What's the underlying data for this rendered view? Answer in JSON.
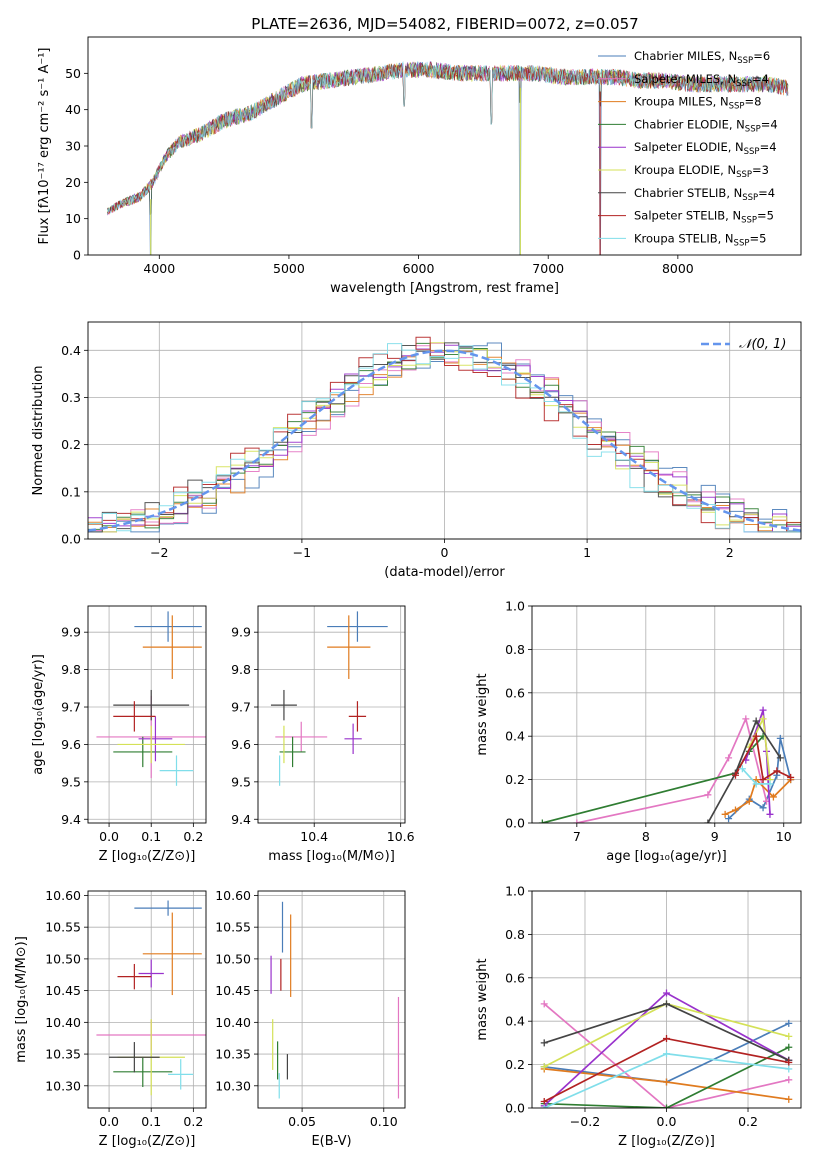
{
  "figure": {
    "title": "PLATE=2636, MJD=54082, FIBERID=0072, z=0.057"
  },
  "series_styles": [
    {
      "name": "Chabrier MILES",
      "nssp": "6",
      "color": "#4a7db8"
    },
    {
      "name": "Salpeter MILES",
      "nssp": "4",
      "color": "#e377c2"
    },
    {
      "name": "Kroupa MILES",
      "nssp": "8",
      "color": "#e07b1f"
    },
    {
      "name": "Chabrier ELODIE",
      "nssp": "4",
      "color": "#2f7d32"
    },
    {
      "name": "Salpeter ELODIE",
      "nssp": "4",
      "color": "#9932cc"
    },
    {
      "name": "Kroupa ELODIE",
      "nssp": "3",
      "color": "#d4e157"
    },
    {
      "name": "Chabrier STELIB",
      "nssp": "4",
      "color": "#444444"
    },
    {
      "name": "Salpeter STELIB",
      "nssp": "5",
      "color": "#b22222"
    },
    {
      "name": "Kroupa STELIB",
      "nssp": "5",
      "color": "#80deea"
    }
  ],
  "chart_data": [
    {
      "id": "spectrum",
      "type": "line",
      "xlabel": "wavelength [Angstrom, rest frame]",
      "ylabel": "Flux [fλ10⁻¹⁷ erg cm⁻² s⁻¹ A⁻¹]",
      "xlim": [
        3450,
        8950
      ],
      "ylim": [
        0,
        60
      ],
      "xticks": [
        4000,
        5000,
        6000,
        7000,
        8000
      ],
      "yticks": [
        0,
        10,
        20,
        30,
        40,
        50
      ],
      "grid": false,
      "legend": "top-right",
      "continuum": {
        "x": [
          3600,
          3700,
          3850,
          3950,
          4050,
          4150,
          4300,
          4500,
          4700,
          4900,
          5100,
          5300,
          5500,
          5700,
          5900,
          6100,
          6300,
          6500,
          6700,
          6900,
          7100,
          7300,
          7500,
          7700,
          7900,
          8100,
          8300,
          8500,
          8700,
          8850
        ],
        "y": [
          12,
          14,
          16,
          20,
          27,
          31,
          33,
          37,
          39,
          43,
          47,
          48,
          49,
          50,
          51,
          51,
          50,
          50,
          50,
          50,
          49,
          49,
          49,
          48,
          48,
          47,
          47,
          47,
          47,
          46
        ]
      },
      "absorption_lines": [
        {
          "x": 3934,
          "y": 0
        },
        {
          "x": 5175,
          "y": 35
        },
        {
          "x": 5890,
          "y": 41
        },
        {
          "x": 6563,
          "y": 36
        },
        {
          "x": 6785,
          "y": 0
        },
        {
          "x": 7400,
          "y": 0
        }
      ]
    },
    {
      "id": "residuals",
      "type": "histogram",
      "xlabel": "(data-model)/error",
      "ylabel": "Normed distribution",
      "xlim": [
        -2.5,
        2.5
      ],
      "ylim": [
        0,
        0.46
      ],
      "xticks": [
        -2,
        -1,
        0,
        1,
        2
      ],
      "yticks": [
        0.0,
        0.1,
        0.2,
        0.3,
        0.4
      ],
      "grid": true,
      "legend": "top-right",
      "reference_curve": {
        "label": "𝒩(0, 1)",
        "mean": 0,
        "sigma": 1,
        "color": "#6495ed"
      },
      "bins": {
        "start": -2.5,
        "width": 0.1,
        "count": 50
      }
    },
    {
      "id": "age_vs_Z",
      "type": "errorbar",
      "xlabel": "Z [log₁₀(Z/Z⊙)]",
      "ylabel": "age  [log₁₀(age/yr)]",
      "xlim": [
        -0.05,
        0.23
      ],
      "ylim": [
        9.39,
        9.97
      ],
      "xticks": [
        0.0,
        0.1,
        0.2
      ],
      "yticks": [
        9.4,
        9.5,
        9.6,
        9.7,
        9.8,
        9.9
      ],
      "grid": true,
      "points": [
        {
          "series": 0,
          "x": 0.14,
          "y": 9.915,
          "xerr": 0.08,
          "yerr": 0.0
        },
        {
          "series": 1,
          "x": 0.1,
          "y": 9.62,
          "xerr": 0.13,
          "yerr": 0.11
        },
        {
          "series": 2,
          "x": 0.15,
          "y": 9.86,
          "xerr": 0.07,
          "yerr": 0.085
        },
        {
          "series": 3,
          "x": 0.08,
          "y": 9.58,
          "xerr": 0.07,
          "yerr": 0.0
        },
        {
          "series": 4,
          "x": 0.11,
          "y": 9.615,
          "xerr": 0.04,
          "yerr": 0.06
        },
        {
          "series": 5,
          "x": 0.1,
          "y": 9.6,
          "xerr": 0.08,
          "yerr": 0.05
        },
        {
          "series": 6,
          "x": 0.1,
          "y": 9.705,
          "xerr": 0.09,
          "yerr": 0.0
        },
        {
          "series": 7,
          "x": 0.06,
          "y": 9.675,
          "xerr": 0.05,
          "yerr": 0.0
        },
        {
          "series": 8,
          "x": 0.16,
          "y": 9.53,
          "xerr": 0.04,
          "yerr": 0.0
        }
      ]
    },
    {
      "id": "age_vs_mass",
      "type": "errorbar",
      "xlabel": "mass [log₁₀(M/M⊙)]",
      "ylabel": "",
      "xlim": [
        10.27,
        10.61
      ],
      "ylim": [
        9.39,
        9.97
      ],
      "xticks": [
        10.4,
        10.6
      ],
      "yticks": [
        9.4,
        9.5,
        9.6,
        9.7,
        9.8,
        9.9
      ],
      "grid": true,
      "points": [
        {
          "series": 0,
          "x": 10.5,
          "y": 9.915,
          "xerr": 0.07,
          "yerr": 0.0
        },
        {
          "series": 1,
          "x": 10.37,
          "y": 9.62,
          "xerr": 0.06,
          "yerr": 0.0
        },
        {
          "series": 2,
          "x": 10.48,
          "y": 9.86,
          "xerr": 0.05,
          "yerr": 0.085
        },
        {
          "series": 3,
          "x": 10.35,
          "y": 9.58,
          "xerr": 0.03,
          "yerr": 0.0
        },
        {
          "series": 4,
          "x": 10.49,
          "y": 9.615,
          "xerr": 0.02,
          "yerr": 0.0
        },
        {
          "series": 5,
          "x": 10.33,
          "y": 9.6,
          "xerr": 0.0,
          "yerr": 0.05
        },
        {
          "series": 6,
          "x": 10.33,
          "y": 9.705,
          "xerr": 0.03,
          "yerr": 0.0
        },
        {
          "series": 7,
          "x": 10.5,
          "y": 9.675,
          "xerr": 0.02,
          "yerr": 0.0
        },
        {
          "series": 8,
          "x": 10.32,
          "y": 9.53,
          "xerr": 0.0,
          "yerr": 0.0
        }
      ]
    },
    {
      "id": "massweight_vs_age",
      "type": "line",
      "xlabel": "age  [log₁₀(age/yr)]",
      "ylabel": "mass weight",
      "xlim": [
        6.35,
        10.25
      ],
      "ylim": [
        0,
        1.0
      ],
      "xticks": [
        7,
        8,
        9,
        10
      ],
      "yticks": [
        0.0,
        0.2,
        0.4,
        0.6,
        0.8,
        1.0
      ],
      "grid": true,
      "series": [
        {
          "series": 0,
          "x": [
            9.2,
            9.5,
            9.7,
            9.9,
            9.95,
            10.1
          ],
          "y": [
            0.02,
            0.11,
            0.07,
            0.22,
            0.39,
            0.2
          ]
        },
        {
          "series": 1,
          "x": [
            7.0,
            8.9,
            9.2,
            9.45,
            9.75
          ],
          "y": [
            0.0,
            0.13,
            0.3,
            0.48,
            0.1
          ]
        },
        {
          "series": 2,
          "x": [
            9.15,
            9.3,
            9.5,
            9.6,
            9.85,
            10.1
          ],
          "y": [
            0.04,
            0.06,
            0.1,
            0.2,
            0.12,
            0.2
          ]
        },
        {
          "series": 3,
          "x": [
            6.5,
            9.3,
            9.5,
            9.7
          ],
          "y": [
            0.0,
            0.23,
            0.33,
            0.4
          ]
        },
        {
          "series": 4,
          "x": [
            9.45,
            9.7,
            9.75,
            9.8
          ],
          "y": [
            0.29,
            0.52,
            0.33,
            0.04
          ]
        },
        {
          "series": 5,
          "x": [
            9.5,
            9.7,
            9.8
          ],
          "y": [
            0.35,
            0.48,
            0.2
          ]
        },
        {
          "series": 6,
          "x": [
            8.9,
            9.3,
            9.6,
            9.95
          ],
          "y": [
            0.0,
            0.23,
            0.47,
            0.3
          ]
        },
        {
          "series": 7,
          "x": [
            9.3,
            9.6,
            9.7,
            9.9,
            10.1
          ],
          "y": [
            0.22,
            0.4,
            0.2,
            0.24,
            0.21
          ]
        },
        {
          "series": 8,
          "x": [
            9.4,
            9.6,
            9.8
          ],
          "y": [
            0.25,
            0.18,
            0.18
          ]
        }
      ]
    },
    {
      "id": "mass_vs_Z",
      "type": "errorbar",
      "xlabel": "Z [log₁₀(Z/Z⊙)]",
      "ylabel": "mass [log₁₀(M/M⊙)]",
      "xlim": [
        -0.05,
        0.23
      ],
      "ylim": [
        10.265,
        10.607
      ],
      "xticks": [
        0.0,
        0.1,
        0.2
      ],
      "yticks": [
        10.3,
        10.35,
        10.4,
        10.45,
        10.5,
        10.55,
        10.6
      ],
      "grid": true,
      "points": [
        {
          "series": 0,
          "x": 0.14,
          "y": 10.58,
          "xerr": 0.08,
          "yerr": 0.012
        },
        {
          "series": 1,
          "x": 0.1,
          "y": 10.38,
          "xerr": 0.13,
          "yerr": 0.0
        },
        {
          "series": 2,
          "x": 0.15,
          "y": 10.508,
          "xerr": 0.07,
          "yerr": 0.065
        },
        {
          "series": 3,
          "x": 0.08,
          "y": 10.322,
          "xerr": 0.07,
          "yerr": 0.0
        },
        {
          "series": 4,
          "x": 0.1,
          "y": 10.477,
          "xerr": 0.03,
          "yerr": 0.022
        },
        {
          "series": 5,
          "x": 0.1,
          "y": 10.345,
          "xerr": 0.08,
          "yerr": 0.06
        },
        {
          "series": 6,
          "x": 0.06,
          "y": 10.345,
          "xerr": 0.06,
          "yerr": 0.0
        },
        {
          "series": 7,
          "x": 0.06,
          "y": 10.472,
          "xerr": 0.04,
          "yerr": 0.02
        },
        {
          "series": 8,
          "x": 0.17,
          "y": 10.318,
          "xerr": 0.03,
          "yerr": 0.0
        }
      ]
    },
    {
      "id": "mass_vs_ebv",
      "type": "errorbar",
      "xlabel": "E(B-V)",
      "ylabel": "",
      "xlim": [
        0.023,
        0.113
      ],
      "ylim": [
        10.265,
        10.607
      ],
      "xticks": [
        0.05,
        0.1
      ],
      "yticks": [
        10.3,
        10.35,
        10.4,
        10.45,
        10.5,
        10.55,
        10.6
      ],
      "grid": true,
      "points": [
        {
          "series": 0,
          "x": 0.038,
          "y": 10.55,
          "xerr": 0.0,
          "yerr": 0.04
        },
        {
          "series": 1,
          "x": 0.109,
          "y": 10.36,
          "xerr": 0.0,
          "yerr": 0.08
        },
        {
          "series": 2,
          "x": 0.043,
          "y": 10.505,
          "xerr": 0.0,
          "yerr": 0.065
        },
        {
          "series": 3,
          "x": 0.035,
          "y": 10.34,
          "xerr": 0.0,
          "yerr": 0.03
        },
        {
          "series": 4,
          "x": 0.031,
          "y": 10.475,
          "xerr": 0.0,
          "yerr": 0.03
        },
        {
          "series": 5,
          "x": 0.032,
          "y": 10.365,
          "xerr": 0.0,
          "yerr": 0.04
        },
        {
          "series": 6,
          "x": 0.041,
          "y": 10.33,
          "xerr": 0.0,
          "yerr": 0.02
        },
        {
          "series": 7,
          "x": 0.037,
          "y": 10.475,
          "xerr": 0.0,
          "yerr": 0.025
        },
        {
          "series": 8,
          "x": 0.036,
          "y": 10.3,
          "xerr": 0.0,
          "yerr": 0.02
        }
      ]
    },
    {
      "id": "massweight_vs_Z",
      "type": "line",
      "xlabel": "Z [log₁₀(Z/Z⊙)]",
      "ylabel": "mass weight",
      "xlim": [
        -0.33,
        0.33
      ],
      "ylim": [
        0,
        1.0
      ],
      "xticks": [
        -0.2,
        0.0,
        0.2
      ],
      "yticks": [
        0.0,
        0.2,
        0.4,
        0.6,
        0.8,
        1.0
      ],
      "grid": true,
      "series": [
        {
          "series": 0,
          "x": [
            -0.3,
            0.0,
            0.3
          ],
          "y": [
            0.19,
            0.12,
            0.39
          ]
        },
        {
          "series": 1,
          "x": [
            -0.3,
            0.0,
            0.3
          ],
          "y": [
            0.48,
            0.0,
            0.13
          ]
        },
        {
          "series": 2,
          "x": [
            -0.3,
            0.0,
            0.3
          ],
          "y": [
            0.18,
            0.12,
            0.04
          ]
        },
        {
          "series": 3,
          "x": [
            -0.3,
            0.0,
            0.3
          ],
          "y": [
            0.02,
            0.0,
            0.28
          ]
        },
        {
          "series": 4,
          "x": [
            -0.3,
            0.0,
            0.3
          ],
          "y": [
            0.01,
            0.53,
            0.22
          ]
        },
        {
          "series": 5,
          "x": [
            -0.3,
            0.0,
            0.3
          ],
          "y": [
            0.19,
            0.48,
            0.33
          ]
        },
        {
          "series": 6,
          "x": [
            -0.3,
            0.0,
            0.3
          ],
          "y": [
            0.3,
            0.48,
            0.22
          ]
        },
        {
          "series": 7,
          "x": [
            -0.3,
            0.0,
            0.3
          ],
          "y": [
            0.03,
            0.32,
            0.21
          ]
        },
        {
          "series": 8,
          "x": [
            -0.3,
            0.0,
            0.3
          ],
          "y": [
            0.0,
            0.25,
            0.18
          ]
        }
      ]
    }
  ]
}
